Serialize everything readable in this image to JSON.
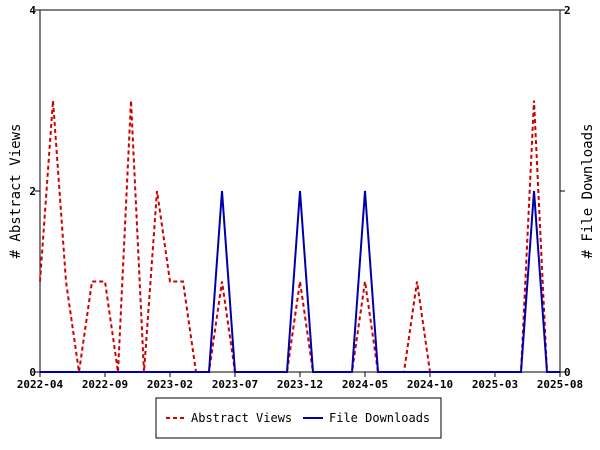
{
  "chart_data": {
    "type": "line",
    "xlabel": "",
    "ylabel_left": "# Abstract Views",
    "ylabel_right": "# File Downloads",
    "ylim_left": [
      0,
      4
    ],
    "ylim_right": [
      0,
      2
    ],
    "yticks_left": [
      "0",
      "2",
      "4"
    ],
    "yticks_right": [
      "0",
      "1",
      "2"
    ],
    "xticks": [
      "2022-04",
      "2022-09",
      "2023-02",
      "2023-07",
      "2023-12",
      "2024-05",
      "2024-10",
      "2025-03",
      "2025-08"
    ],
    "x": [
      "2022-04",
      "2022-05",
      "2022-06",
      "2022-07",
      "2022-08",
      "2022-09",
      "2022-10",
      "2022-11",
      "2022-12",
      "2023-01",
      "2023-02",
      "2023-03",
      "2023-04",
      "2023-05",
      "2023-06",
      "2023-07",
      "2023-08",
      "2023-09",
      "2023-10",
      "2023-11",
      "2023-12",
      "2024-01",
      "2024-02",
      "2024-03",
      "2024-04",
      "2024-05",
      "2024-06",
      "2024-07",
      "2024-08",
      "2024-09",
      "2024-10",
      "2024-11",
      "2024-12",
      "2025-01",
      "2025-02",
      "2025-03",
      "2025-04",
      "2025-05",
      "2025-06",
      "2025-07",
      "2025-08"
    ],
    "legend_position": "bottom",
    "grid": false,
    "series": [
      {
        "name": "Abstract Views",
        "axis": "left",
        "color": "#cc0000",
        "dash": "dashed",
        "values": [
          1,
          3,
          1,
          0,
          1,
          1,
          0,
          3,
          0,
          2,
          1,
          1,
          0,
          0,
          1,
          0,
          0,
          0,
          0,
          0,
          1,
          0,
          0,
          0,
          0,
          1,
          0,
          0,
          0,
          1,
          0,
          0,
          0,
          0,
          0,
          0,
          0,
          0,
          3,
          0,
          0
        ]
      },
      {
        "name": "File Downloads",
        "axis": "right",
        "color": "#0000aa",
        "dash": "solid",
        "values": [
          0,
          0,
          0,
          0,
          0,
          0,
          0,
          0,
          0,
          0,
          0,
          0,
          0,
          0,
          1,
          0,
          0,
          0,
          0,
          0,
          1,
          0,
          0,
          0,
          0,
          1,
          0,
          0,
          0,
          0,
          0,
          0,
          0,
          0,
          0,
          0,
          0,
          0,
          1,
          0,
          0
        ]
      }
    ]
  }
}
